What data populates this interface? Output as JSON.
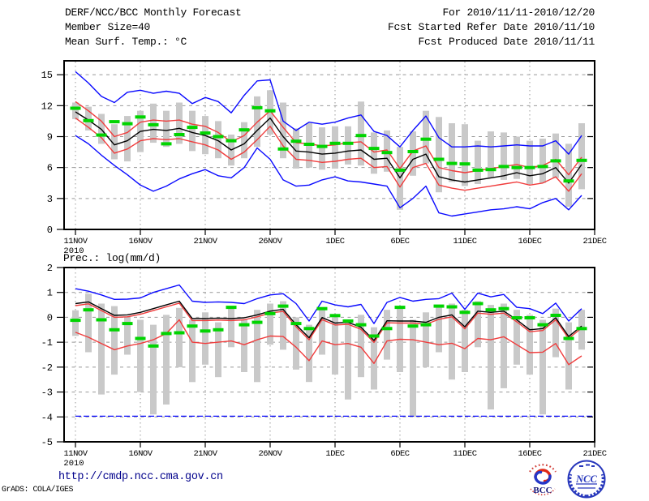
{
  "header": {
    "title": "DERF/NCC/BCC Monthly Forecast",
    "member_line": "Member Size=40",
    "for_line": "For 2010/11/11-2010/12/20",
    "refer_line": "Fcst Started Refer Date 2010/11/10",
    "produced_line": "Fcst Produced Date 2010/11/11"
  },
  "footer": {
    "url": "http://cmdp.ncc.cma.gov.cn",
    "credit": "GrADS: COLA/IGES",
    "logo_bcc": "BCC",
    "logo_ncc": "NCC"
  },
  "chart_data": [
    {
      "id": "surface-temp-chart",
      "type": "line",
      "title": "Mean Surf. Temp.: °C",
      "ylim": [
        0,
        16.35
      ],
      "yticks": [
        15,
        12,
        9,
        6,
        3,
        0
      ],
      "grid": true,
      "legend": "none",
      "x_tick_labels": [
        "11NOV",
        "16NOV",
        "21NOV",
        "26NOV",
        "1DEC",
        "6DEC",
        "11DEC",
        "16DEC",
        "21DEC"
      ],
      "x_year_label": "2010",
      "x_dates": [
        "11NOV",
        "12NOV",
        "13NOV",
        "14NOV",
        "15NOV",
        "16NOV",
        "17NOV",
        "18NOV",
        "19NOV",
        "20NOV",
        "21NOV",
        "22NOV",
        "23NOV",
        "24NOV",
        "25NOV",
        "26NOV",
        "27NOV",
        "28NOV",
        "29NOV",
        "30NOV",
        "1DEC",
        "2DEC",
        "3DEC",
        "4DEC",
        "5DEC",
        "6DEC",
        "7DEC",
        "8DEC",
        "9DEC",
        "10DEC",
        "11DEC",
        "12DEC",
        "13DEC",
        "14DEC",
        "15DEC",
        "16DEC",
        "17DEC",
        "18DEC",
        "19DEC",
        "20DEC"
      ],
      "series": [
        {
          "name": "ensemble-max",
          "color": "#0a0aff",
          "values": [
            15.3,
            14.2,
            12.9,
            12.3,
            13.3,
            13.5,
            13.2,
            13.4,
            13.2,
            12.2,
            12.8,
            12.4,
            11.3,
            13.0,
            14.4,
            14.5,
            10.5,
            9.6,
            10.4,
            10.2,
            10.4,
            10.8,
            11.1,
            9.5,
            9.1,
            8.0,
            9.6,
            11.0,
            8.9,
            8.0,
            8.0,
            8.1,
            8.0,
            8.1,
            8.2,
            8.1,
            8.1,
            8.6,
            7.3,
            9.1
          ]
        },
        {
          "name": "upper-spread-red",
          "color": "#f03c3c",
          "values": [
            12.4,
            11.5,
            10.5,
            9.0,
            9.4,
            10.4,
            10.6,
            10.5,
            10.6,
            10.2,
            10.0,
            9.4,
            8.5,
            9.1,
            10.4,
            11.5,
            9.9,
            8.4,
            8.3,
            8.1,
            8.2,
            8.4,
            8.5,
            7.5,
            7.7,
            5.9,
            7.6,
            8.1,
            6.0,
            5.7,
            5.5,
            5.7,
            5.9,
            6.1,
            6.3,
            6.0,
            6.2,
            6.8,
            5.3,
            7.0
          ]
        },
        {
          "name": "ensemble-mean",
          "color": "#000000",
          "values": [
            11.4,
            10.6,
            9.7,
            8.2,
            8.6,
            9.5,
            9.7,
            9.6,
            9.8,
            9.4,
            9.1,
            8.6,
            7.7,
            8.3,
            9.6,
            10.8,
            9.0,
            7.6,
            7.5,
            7.3,
            7.4,
            7.6,
            7.7,
            6.8,
            6.9,
            5.0,
            6.8,
            7.3,
            5.1,
            4.8,
            4.6,
            4.8,
            5.0,
            5.2,
            5.5,
            5.2,
            5.4,
            6.0,
            4.5,
            6.3
          ]
        },
        {
          "name": "lower-spread-red",
          "color": "#f03c3c",
          "values": [
            10.8,
            9.9,
            8.9,
            7.4,
            7.8,
            8.6,
            8.8,
            8.7,
            8.8,
            8.5,
            8.2,
            7.7,
            6.8,
            7.5,
            8.7,
            10.0,
            8.1,
            6.8,
            6.7,
            6.5,
            6.6,
            6.8,
            6.9,
            6.0,
            6.1,
            4.1,
            6.0,
            6.4,
            4.3,
            4.0,
            3.8,
            4.0,
            4.2,
            4.4,
            4.6,
            4.3,
            4.5,
            5.1,
            3.7,
            5.4
          ]
        },
        {
          "name": "ensemble-min",
          "color": "#0a0aff",
          "values": [
            9.1,
            8.3,
            7.2,
            6.2,
            5.3,
            4.3,
            3.7,
            4.2,
            4.9,
            5.4,
            5.8,
            5.2,
            5.0,
            6.0,
            7.9,
            6.8,
            4.8,
            4.2,
            4.3,
            4.8,
            5.1,
            4.7,
            4.6,
            4.4,
            4.2,
            2.1,
            3.0,
            4.2,
            1.6,
            1.3,
            1.5,
            1.7,
            1.9,
            2.0,
            2.2,
            2.0,
            2.6,
            3.0,
            1.9,
            3.3
          ]
        }
      ],
      "green_dashes": {
        "name": "observation-dash",
        "color": "#00d400",
        "values": [
          11.75,
          10.55,
          9.15,
          10.45,
          10.25,
          10.9,
          10.15,
          8.3,
          9.2,
          9.9,
          9.35,
          9.0,
          8.6,
          9.65,
          11.8,
          11.5,
          7.8,
          8.55,
          8.25,
          8.05,
          8.35,
          8.35,
          9.1,
          7.85,
          7.45,
          5.75,
          7.55,
          8.75,
          6.8,
          6.4,
          6.35,
          5.75,
          5.8,
          6.1,
          6.0,
          6.0,
          6.1,
          6.65,
          4.7,
          6.7
        ]
      },
      "spread_bars": {
        "name": "member-spread-bar",
        "color": "#c9c9c9",
        "ranges": [
          [
            10.7,
            12.3
          ],
          [
            9.6,
            11.9
          ],
          [
            8.3,
            11.2
          ],
          [
            6.8,
            10.2
          ],
          [
            6.6,
            11.0
          ],
          [
            7.5,
            11.5
          ],
          [
            8.4,
            12.2
          ],
          [
            8.0,
            11.5
          ],
          [
            8.3,
            12.3
          ],
          [
            7.6,
            11.5
          ],
          [
            7.3,
            11.0
          ],
          [
            6.9,
            10.5
          ],
          [
            6.2,
            9.2
          ],
          [
            6.9,
            10.4
          ],
          [
            8.0,
            12.9
          ],
          [
            9.2,
            13.5
          ],
          [
            6.9,
            12.3
          ],
          [
            5.9,
            9.8
          ],
          [
            6.0,
            10.3
          ],
          [
            5.8,
            9.9
          ],
          [
            5.9,
            10.0
          ],
          [
            6.3,
            10.0
          ],
          [
            6.2,
            12.4
          ],
          [
            5.4,
            9.4
          ],
          [
            5.6,
            9.6
          ],
          [
            1.9,
            8.0
          ],
          [
            5.2,
            9.5
          ],
          [
            6.4,
            11.5
          ],
          [
            3.6,
            10.9
          ],
          [
            4.6,
            10.3
          ],
          [
            4.2,
            10.2
          ],
          [
            4.4,
            8.6
          ],
          [
            5.0,
            9.5
          ],
          [
            4.8,
            9.4
          ],
          [
            4.9,
            9.0
          ],
          [
            4.4,
            8.6
          ],
          [
            4.5,
            8.8
          ],
          [
            5.0,
            9.3
          ],
          [
            2.2,
            8.3
          ],
          [
            3.9,
            10.3
          ]
        ]
      }
    },
    {
      "id": "precip-chart",
      "type": "line",
      "title": "Prec.: log(mm/d)",
      "ylim": [
        -5,
        2
      ],
      "yticks": [
        2,
        1,
        0,
        -1,
        -2,
        -3,
        -4,
        -5
      ],
      "grid": true,
      "legend": "none",
      "x_tick_labels": [
        "11NOV",
        "16NOV",
        "21NOV",
        "26NOV",
        "1DEC",
        "6DEC",
        "11DEC",
        "16DEC",
        "21DEC"
      ],
      "x_year_label": "2010",
      "x_dates": [
        "11NOV",
        "12NOV",
        "13NOV",
        "14NOV",
        "15NOV",
        "16NOV",
        "17NOV",
        "18NOV",
        "19NOV",
        "20NOV",
        "21NOV",
        "22NOV",
        "23NOV",
        "24NOV",
        "25NOV",
        "26NOV",
        "27NOV",
        "28NOV",
        "29NOV",
        "30NOV",
        "1DEC",
        "2DEC",
        "3DEC",
        "4DEC",
        "5DEC",
        "6DEC",
        "7DEC",
        "8DEC",
        "9DEC",
        "10DEC",
        "11DEC",
        "12DEC",
        "13DEC",
        "14DEC",
        "15DEC",
        "16DEC",
        "17DEC",
        "18DEC",
        "19DEC",
        "20DEC"
      ],
      "series": [
        {
          "name": "ensemble-max",
          "color": "#0a0aff",
          "values": [
            1.15,
            1.05,
            0.9,
            0.72,
            0.73,
            0.78,
            1.0,
            1.15,
            1.3,
            0.65,
            0.6,
            0.62,
            0.6,
            0.55,
            0.75,
            0.9,
            0.95,
            0.55,
            -0.15,
            0.65,
            0.5,
            0.42,
            0.52,
            -0.25,
            0.6,
            0.8,
            0.65,
            0.72,
            0.75,
            0.97,
            0.32,
            0.97,
            0.82,
            0.92,
            0.4,
            0.35,
            0.15,
            0.57,
            -0.15,
            0.35
          ]
        },
        {
          "name": "upper-spread-red",
          "color": "#f03c3c",
          "values": [
            0.47,
            0.54,
            0.27,
            0.0,
            0.02,
            0.12,
            0.27,
            0.42,
            0.57,
            -0.13,
            -0.13,
            -0.11,
            -0.13,
            -0.1,
            0.02,
            0.17,
            0.24,
            -0.38,
            -0.9,
            -0.09,
            -0.31,
            -0.28,
            -0.48,
            -1.01,
            -0.22,
            -0.23,
            -0.23,
            -0.28,
            -0.08,
            0.02,
            -0.46,
            0.17,
            0.12,
            0.17,
            -0.18,
            -0.58,
            -0.53,
            -0.1,
            -0.85,
            -0.43
          ]
        },
        {
          "name": "ensemble-mean",
          "color": "#000000",
          "values": [
            0.55,
            0.62,
            0.35,
            0.08,
            0.1,
            0.2,
            0.35,
            0.5,
            0.65,
            -0.05,
            -0.05,
            -0.03,
            -0.05,
            -0.02,
            0.1,
            0.25,
            0.32,
            -0.3,
            -0.82,
            -0.01,
            -0.23,
            -0.2,
            -0.4,
            -0.93,
            -0.14,
            -0.15,
            -0.15,
            -0.2,
            0.0,
            0.1,
            -0.38,
            0.25,
            0.2,
            0.25,
            -0.1,
            -0.5,
            -0.45,
            -0.02,
            -0.77,
            -0.35
          ]
        },
        {
          "name": "lower-spread-red",
          "color": "#f03c3c",
          "values": [
            -0.6,
            -0.8,
            -1.05,
            -1.3,
            -1.15,
            -1.05,
            -0.9,
            -0.65,
            -0.1,
            -1.0,
            -1.05,
            -1.0,
            -0.95,
            -1.1,
            -0.9,
            -0.75,
            -0.77,
            -1.2,
            -1.74,
            -0.95,
            -1.1,
            -1.05,
            -1.2,
            -1.85,
            -0.95,
            -0.88,
            -0.9,
            -1.0,
            -1.1,
            -1.04,
            -1.26,
            -0.85,
            -0.9,
            -0.78,
            -1.1,
            -1.42,
            -1.4,
            -1.05,
            -1.9,
            -1.55
          ]
        },
        {
          "name": "ensemble-min-clipped",
          "color": "#0a0aff",
          "flat_value": -3.97
        }
      ],
      "green_dashes": {
        "name": "observation-dash",
        "color": "#00d400",
        "values": [
          -0.12,
          0.3,
          -0.1,
          -0.5,
          -0.25,
          -0.85,
          -1.15,
          -0.65,
          -0.62,
          -0.35,
          -0.55,
          -0.5,
          0.4,
          -0.3,
          -0.2,
          0.15,
          0.45,
          -0.25,
          -0.45,
          0.35,
          0.07,
          -0.15,
          -0.3,
          -0.75,
          -0.45,
          0.4,
          -0.35,
          -0.3,
          0.45,
          0.42,
          0.2,
          0.55,
          0.3,
          0.35,
          -0.02,
          -0.02,
          -0.3,
          0.08,
          -0.85,
          -0.45
        ]
      },
      "spread_bars": {
        "name": "member-spread-bar",
        "color": "#c9c9c9",
        "ranges": [
          [
            -0.75,
            0.28
          ],
          [
            -1.4,
            0.95
          ],
          [
            -3.1,
            0.55
          ],
          [
            -2.3,
            0.45
          ],
          [
            -1.5,
            0.0
          ],
          [
            -3.0,
            -0.1
          ],
          [
            -3.9,
            -0.3
          ],
          [
            -3.5,
            0.1
          ],
          [
            -2.0,
            0.38
          ],
          [
            -2.6,
            -0.1
          ],
          [
            -1.9,
            0.2
          ],
          [
            -2.4,
            -0.2
          ],
          [
            -1.2,
            0.45
          ],
          [
            -2.2,
            -0.1
          ],
          [
            -2.6,
            0.3
          ],
          [
            -1.1,
            0.55
          ],
          [
            -1.3,
            0.65
          ],
          [
            -2.1,
            0.0
          ],
          [
            -2.6,
            -0.3
          ],
          [
            -1.5,
            0.35
          ],
          [
            -2.3,
            0.0
          ],
          [
            -3.3,
            -0.2
          ],
          [
            -2.4,
            0.1
          ],
          [
            -2.9,
            -0.4
          ],
          [
            -1.7,
            0.3
          ],
          [
            -2.2,
            0.4
          ],
          [
            -4.0,
            -0.1
          ],
          [
            -2.0,
            0.2
          ],
          [
            -1.4,
            0.5
          ],
          [
            -2.5,
            0.55
          ],
          [
            -2.2,
            0.3
          ],
          [
            -1.2,
            0.65
          ],
          [
            -3.7,
            0.5
          ],
          [
            -2.85,
            0.55
          ],
          [
            -1.9,
            0.3
          ],
          [
            -2.3,
            0.1
          ],
          [
            -3.9,
            -0.1
          ],
          [
            -1.6,
            0.35
          ],
          [
            -2.9,
            -0.2
          ],
          [
            -1.3,
            0.3
          ]
        ]
      }
    }
  ]
}
